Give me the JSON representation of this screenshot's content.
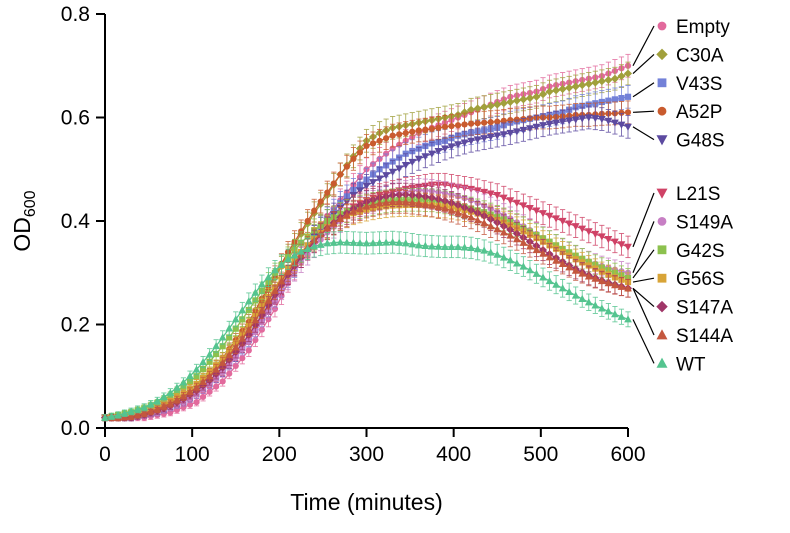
{
  "figure": {
    "background": "#ffffff",
    "axis_color": "#000000"
  },
  "chart_data": {
    "type": "line",
    "title": "",
    "xlabel": "Time (minutes)",
    "ylabel": "OD600",
    "ylabel_parts": {
      "base": "OD",
      "sub": "600"
    },
    "xlim": [
      0,
      600
    ],
    "ylim": [
      0,
      0.8
    ],
    "x_ticks": [
      0,
      100,
      200,
      300,
      400,
      500,
      600
    ],
    "y_ticks": [
      0.0,
      0.2,
      0.4,
      0.6,
      0.8
    ],
    "grid": false,
    "legend_position": "right",
    "error_bars": {
      "base": 0.005,
      "scale": 0.045,
      "cap": 0.022
    },
    "x": [
      0,
      15,
      30,
      45,
      60,
      75,
      90,
      105,
      120,
      135,
      150,
      165,
      180,
      195,
      210,
      225,
      240,
      255,
      270,
      285,
      300,
      315,
      330,
      345,
      360,
      375,
      390,
      405,
      420,
      435,
      450,
      465,
      480,
      495,
      510,
      525,
      540,
      555,
      570,
      585,
      600
    ],
    "series": [
      {
        "name": "Empty",
        "marker": "circle",
        "color": "#e2699c",
        "values": [
          0.02,
          0.02,
          0.02,
          0.02,
          0.025,
          0.03,
          0.04,
          0.05,
          0.07,
          0.09,
          0.12,
          0.15,
          0.19,
          0.23,
          0.28,
          0.33,
          0.37,
          0.41,
          0.44,
          0.47,
          0.5,
          0.52,
          0.54,
          0.555,
          0.57,
          0.58,
          0.59,
          0.6,
          0.61,
          0.62,
          0.63,
          0.64,
          0.645,
          0.65,
          0.66,
          0.665,
          0.67,
          0.675,
          0.68,
          0.69,
          0.7
        ]
      },
      {
        "name": "C30A",
        "marker": "diamond",
        "color": "#a1a03c",
        "values": [
          0.02,
          0.02,
          0.025,
          0.03,
          0.035,
          0.045,
          0.06,
          0.08,
          0.105,
          0.13,
          0.165,
          0.2,
          0.245,
          0.29,
          0.335,
          0.375,
          0.415,
          0.45,
          0.49,
          0.525,
          0.555,
          0.57,
          0.58,
          0.585,
          0.59,
          0.595,
          0.6,
          0.605,
          0.615,
          0.62,
          0.625,
          0.63,
          0.635,
          0.64,
          0.65,
          0.655,
          0.66,
          0.665,
          0.67,
          0.675,
          0.685
        ]
      },
      {
        "name": "V43S",
        "marker": "square",
        "color": "#7381d8",
        "values": [
          0.02,
          0.02,
          0.02,
          0.025,
          0.03,
          0.04,
          0.05,
          0.065,
          0.085,
          0.11,
          0.14,
          0.17,
          0.21,
          0.25,
          0.29,
          0.33,
          0.37,
          0.405,
          0.435,
          0.46,
          0.48,
          0.5,
          0.515,
          0.53,
          0.54,
          0.55,
          0.555,
          0.565,
          0.57,
          0.575,
          0.58,
          0.59,
          0.595,
          0.6,
          0.605,
          0.61,
          0.62,
          0.625,
          0.63,
          0.635,
          0.64
        ]
      },
      {
        "name": "A52P",
        "marker": "circle",
        "color": "#c95b2e",
        "values": [
          0.02,
          0.02,
          0.025,
          0.03,
          0.04,
          0.05,
          0.065,
          0.085,
          0.105,
          0.135,
          0.17,
          0.205,
          0.25,
          0.295,
          0.34,
          0.38,
          0.42,
          0.455,
          0.49,
          0.52,
          0.545,
          0.555,
          0.565,
          0.57,
          0.575,
          0.578,
          0.582,
          0.585,
          0.588,
          0.59,
          0.592,
          0.595,
          0.597,
          0.6,
          0.6,
          0.602,
          0.605,
          0.605,
          0.607,
          0.608,
          0.61
        ]
      },
      {
        "name": "G48S",
        "marker": "triangle-down",
        "color": "#5c4aa0",
        "values": [
          0.02,
          0.02,
          0.02,
          0.025,
          0.03,
          0.04,
          0.05,
          0.065,
          0.085,
          0.11,
          0.14,
          0.175,
          0.215,
          0.255,
          0.295,
          0.335,
          0.37,
          0.4,
          0.425,
          0.45,
          0.468,
          0.482,
          0.495,
          0.508,
          0.52,
          0.53,
          0.54,
          0.548,
          0.555,
          0.56,
          0.565,
          0.57,
          0.576,
          0.582,
          0.588,
          0.592,
          0.596,
          0.6,
          0.597,
          0.59,
          0.582
        ]
      },
      {
        "name": "L21S",
        "marker": "triangle-down",
        "color": "#cf4266",
        "values": [
          0.02,
          0.02,
          0.02,
          0.025,
          0.03,
          0.04,
          0.052,
          0.068,
          0.088,
          0.112,
          0.142,
          0.175,
          0.215,
          0.255,
          0.295,
          0.33,
          0.36,
          0.39,
          0.412,
          0.428,
          0.44,
          0.45,
          0.456,
          0.462,
          0.466,
          0.47,
          0.47,
          0.466,
          0.462,
          0.456,
          0.45,
          0.44,
          0.43,
          0.42,
          0.41,
          0.4,
          0.39,
          0.38,
          0.37,
          0.36,
          0.35
        ]
      },
      {
        "name": "S149A",
        "marker": "circle",
        "color": "#c77fc4",
        "values": [
          0.02,
          0.02,
          0.02,
          0.025,
          0.03,
          0.04,
          0.05,
          0.065,
          0.085,
          0.108,
          0.136,
          0.168,
          0.205,
          0.245,
          0.285,
          0.32,
          0.35,
          0.378,
          0.4,
          0.418,
          0.432,
          0.442,
          0.45,
          0.456,
          0.46,
          0.458,
          0.454,
          0.448,
          0.44,
          0.43,
          0.418,
          0.405,
          0.39,
          0.375,
          0.36,
          0.345,
          0.332,
          0.322,
          0.313,
          0.306,
          0.3
        ]
      },
      {
        "name": "G42S",
        "marker": "square",
        "color": "#8cc14e",
        "values": [
          0.02,
          0.025,
          0.03,
          0.038,
          0.048,
          0.062,
          0.08,
          0.1,
          0.128,
          0.158,
          0.192,
          0.228,
          0.265,
          0.3,
          0.33,
          0.358,
          0.382,
          0.4,
          0.414,
          0.424,
          0.43,
          0.436,
          0.44,
          0.441,
          0.441,
          0.44,
          0.436,
          0.43,
          0.424,
          0.417,
          0.408,
          0.398,
          0.386,
          0.373,
          0.36,
          0.346,
          0.333,
          0.321,
          0.31,
          0.3,
          0.29
        ]
      },
      {
        "name": "G56S",
        "marker": "square",
        "color": "#d8a437",
        "values": [
          0.02,
          0.02,
          0.025,
          0.032,
          0.04,
          0.052,
          0.066,
          0.085,
          0.108,
          0.134,
          0.164,
          0.198,
          0.235,
          0.272,
          0.308,
          0.34,
          0.366,
          0.388,
          0.404,
          0.415,
          0.422,
          0.427,
          0.43,
          0.431,
          0.431,
          0.43,
          0.428,
          0.424,
          0.418,
          0.411,
          0.402,
          0.392,
          0.38,
          0.367,
          0.353,
          0.34,
          0.326,
          0.314,
          0.302,
          0.291,
          0.282
        ]
      },
      {
        "name": "S147A",
        "marker": "diamond",
        "color": "#a03668",
        "values": [
          0.02,
          0.02,
          0.02,
          0.026,
          0.033,
          0.043,
          0.056,
          0.072,
          0.092,
          0.117,
          0.147,
          0.18,
          0.218,
          0.258,
          0.296,
          0.33,
          0.36,
          0.386,
          0.407,
          0.424,
          0.437,
          0.445,
          0.45,
          0.451,
          0.449,
          0.445,
          0.439,
          0.431,
          0.421,
          0.41,
          0.397,
          0.383,
          0.368,
          0.352,
          0.336,
          0.321,
          0.307,
          0.295,
          0.285,
          0.277,
          0.27
        ]
      },
      {
        "name": "S144A",
        "marker": "triangle-up",
        "color": "#c4573e",
        "values": [
          0.02,
          0.02,
          0.022,
          0.028,
          0.036,
          0.047,
          0.061,
          0.078,
          0.1,
          0.126,
          0.156,
          0.19,
          0.227,
          0.265,
          0.302,
          0.335,
          0.363,
          0.386,
          0.404,
          0.418,
          0.428,
          0.434,
          0.437,
          0.437,
          0.434,
          0.43,
          0.424,
          0.416,
          0.407,
          0.396,
          0.384,
          0.372,
          0.358,
          0.344,
          0.33,
          0.317,
          0.304,
          0.293,
          0.284,
          0.276,
          0.27
        ]
      },
      {
        "name": "WT",
        "marker": "triangle-up",
        "color": "#54c48f",
        "values": [
          0.02,
          0.025,
          0.032,
          0.04,
          0.052,
          0.068,
          0.088,
          0.113,
          0.142,
          0.175,
          0.21,
          0.245,
          0.278,
          0.305,
          0.326,
          0.341,
          0.351,
          0.357,
          0.359,
          0.358,
          0.357,
          0.358,
          0.359,
          0.357,
          0.353,
          0.351,
          0.35,
          0.35,
          0.348,
          0.343,
          0.335,
          0.324,
          0.312,
          0.298,
          0.284,
          0.27,
          0.256,
          0.243,
          0.231,
          0.22,
          0.21
        ]
      }
    ],
    "legend_groups": [
      [
        "Empty",
        "C30A",
        "V43S",
        "A52P",
        "G48S"
      ],
      [
        "L21S",
        "S149A",
        "G42S",
        "G56S",
        "S147A",
        "S144A",
        "WT"
      ]
    ]
  }
}
